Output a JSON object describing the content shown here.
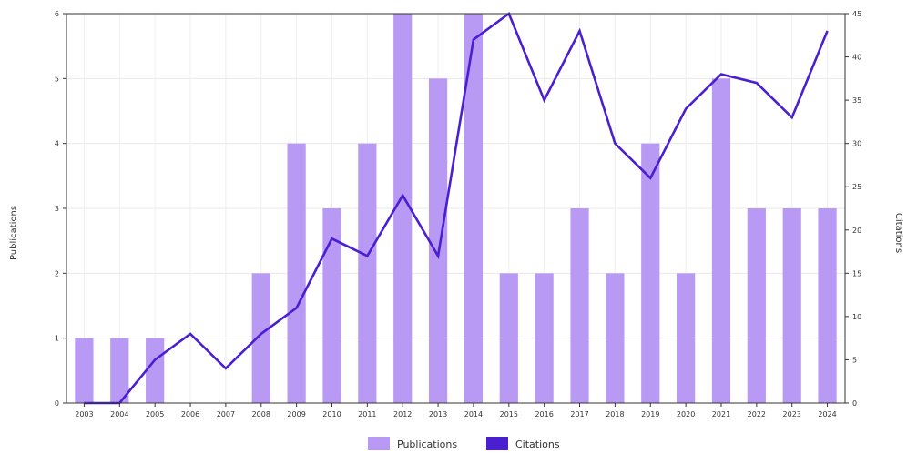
{
  "chart_data": {
    "type": "bar",
    "categories": [
      "2003",
      "2004",
      "2005",
      "2006",
      "2007",
      "2008",
      "2009",
      "2010",
      "2011",
      "2012",
      "2013",
      "2014",
      "2015",
      "2016",
      "2017",
      "2018",
      "2019",
      "2020",
      "2021",
      "2022",
      "2023",
      "2024"
    ],
    "series": [
      {
        "name": "Publications",
        "type": "bar",
        "axis": "left",
        "color": "#b89af5",
        "values": [
          1,
          1,
          1,
          0,
          0,
          2,
          4,
          3,
          4,
          6,
          5,
          6,
          2,
          2,
          3,
          2,
          4,
          2,
          5,
          3,
          3,
          3
        ]
      },
      {
        "name": "Citations",
        "type": "line",
        "axis": "right",
        "color": "#4a1fd0",
        "values": [
          0,
          0,
          5,
          8,
          4,
          8,
          11,
          19,
          17,
          24,
          17,
          42,
          45,
          35,
          43,
          30,
          26,
          34,
          38,
          37,
          33,
          43
        ]
      }
    ],
    "ylabel": "Publications",
    "y2label": "Citations",
    "ylim": [
      0,
      6
    ],
    "y2lim": [
      0,
      45
    ],
    "yticks": [
      0,
      1,
      2,
      3,
      4,
      5,
      6
    ],
    "y2ticks": [
      0,
      5,
      10,
      15,
      20,
      25,
      30,
      35,
      40,
      45
    ],
    "grid": true,
    "legend": "bottom-center"
  }
}
